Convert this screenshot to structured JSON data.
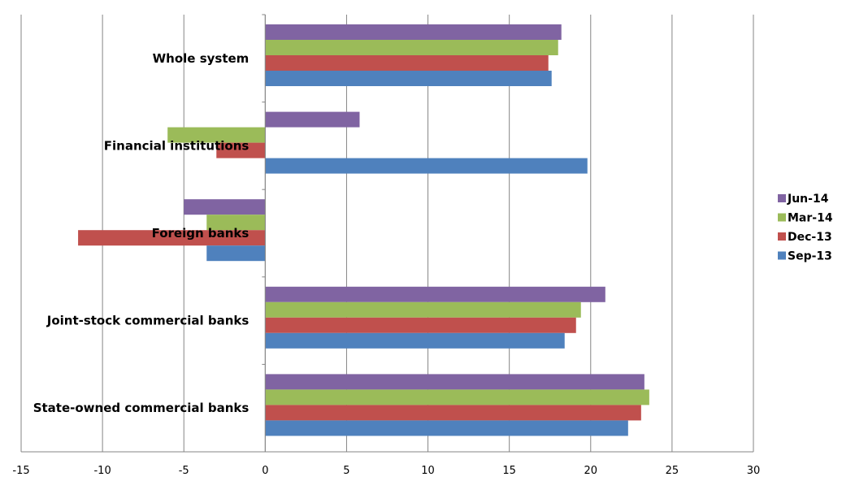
{
  "chart_data": {
    "type": "bar",
    "orientation": "horizontal",
    "categories": [
      "Whole system",
      "Financial institutions",
      "Foreign banks",
      "Joint-stock commercial banks",
      "State-owned commercial banks"
    ],
    "series": [
      {
        "name": "Jun-14",
        "color": "#8064A2",
        "values": [
          18.2,
          5.8,
          -5.0,
          20.9,
          23.3
        ]
      },
      {
        "name": "Mar-14",
        "color": "#9BBB59",
        "values": [
          18.0,
          -6.0,
          -3.6,
          19.4,
          23.6
        ]
      },
      {
        "name": "Dec-13",
        "color": "#C0504D",
        "values": [
          17.4,
          -3.0,
          -11.5,
          19.1,
          23.1
        ]
      },
      {
        "name": "Sep-13",
        "color": "#4F81BD",
        "values": [
          17.6,
          19.8,
          -3.6,
          18.4,
          22.3
        ]
      }
    ],
    "xlim": [
      -15,
      30
    ],
    "xticks": [
      "-15",
      "-10",
      "-5",
      "0",
      "5",
      "10",
      "15",
      "20",
      "25",
      "30"
    ],
    "grid": true,
    "legend_position": "right",
    "legend_order": [
      "Jun-14",
      "Mar-14",
      "Dec-13",
      "Sep-13"
    ]
  }
}
